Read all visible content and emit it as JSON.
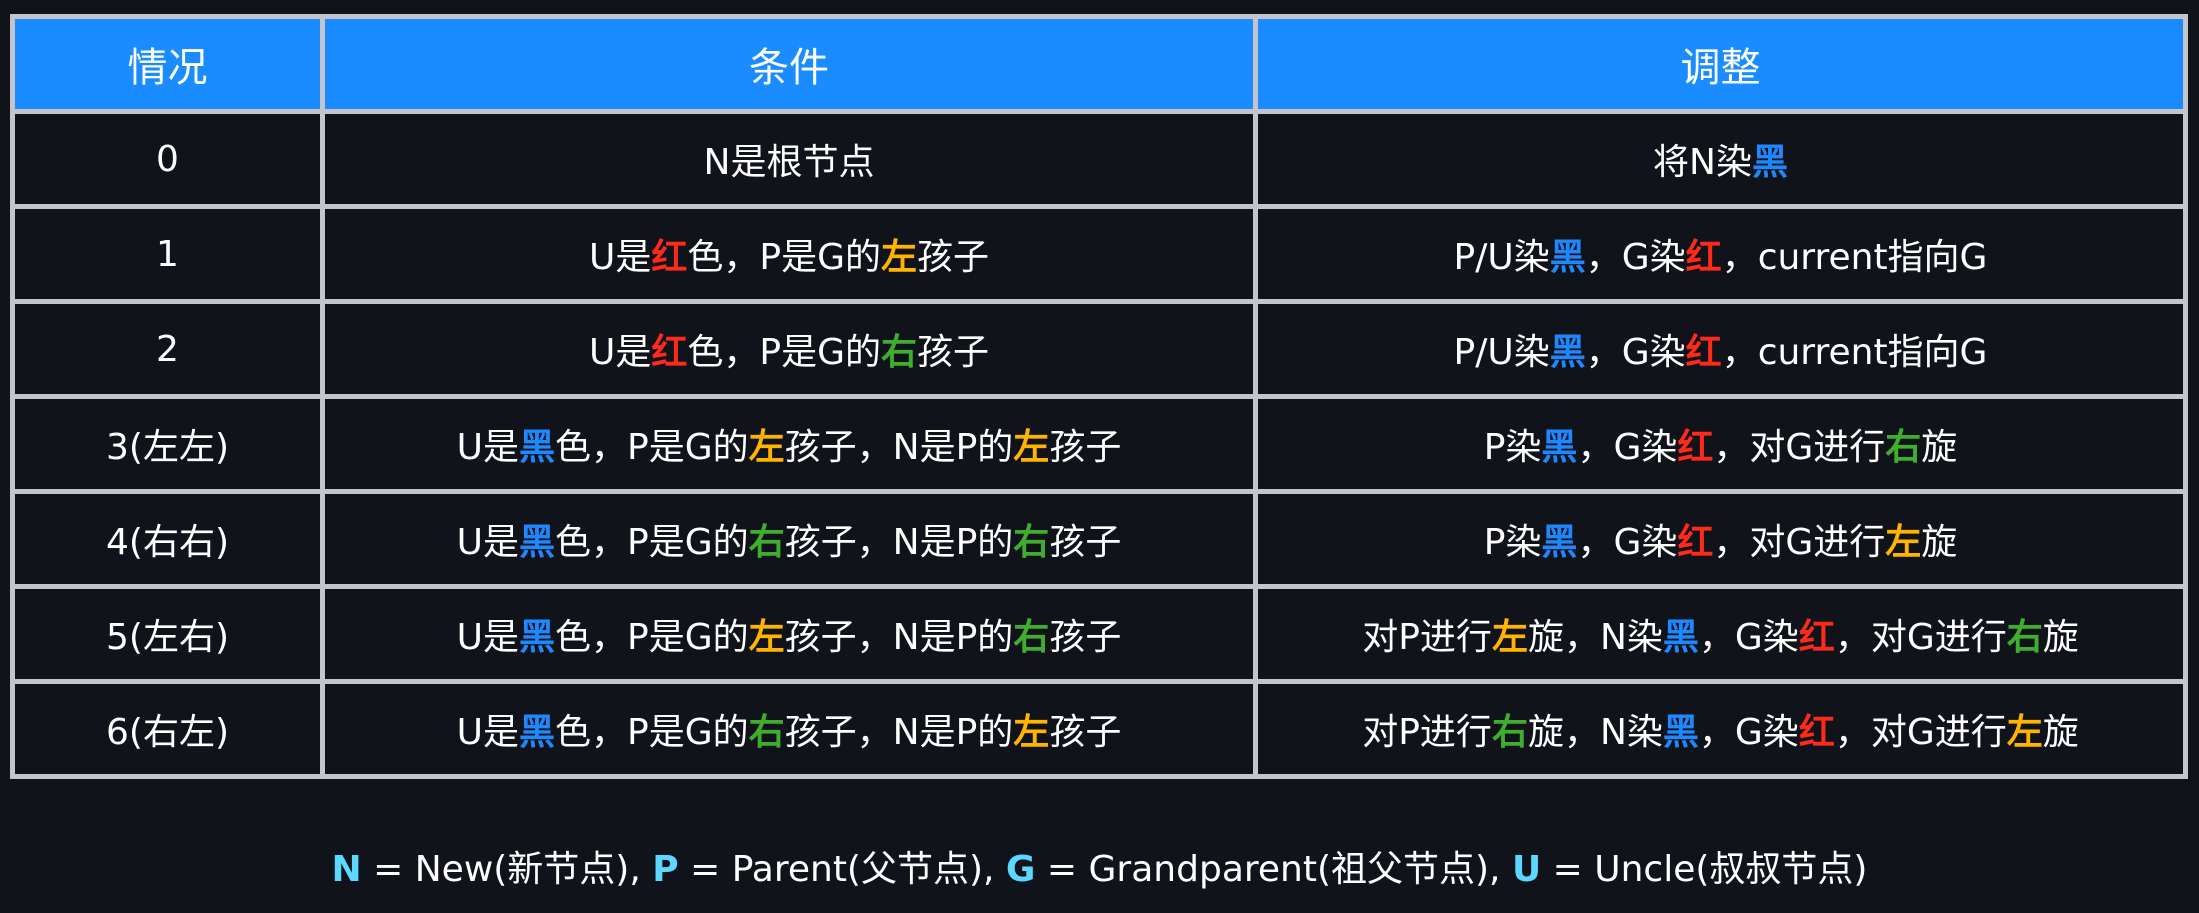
{
  "colors": {
    "header_bg": "#1a8cff",
    "red": "#ff2a1a",
    "blue": "#1e88ff",
    "orange": "#ffb400",
    "green": "#3fae2f",
    "cyan": "#5ad8ff",
    "white": "#ffffff"
  },
  "headers": [
    "情况",
    "条件",
    "调整"
  ],
  "rows": [
    {
      "case": "0",
      "cond": [
        {
          "t": "N是根节点"
        }
      ],
      "adj": [
        {
          "t": "将N染"
        },
        {
          "t": "黑",
          "c": "blue"
        }
      ]
    },
    {
      "case": "1",
      "cond": [
        {
          "t": "U是"
        },
        {
          "t": "红",
          "c": "red"
        },
        {
          "t": "色，P是G的"
        },
        {
          "t": "左",
          "c": "orange"
        },
        {
          "t": "孩子"
        }
      ],
      "adj": [
        {
          "t": "P/U染"
        },
        {
          "t": "黑",
          "c": "blue"
        },
        {
          "t": "，G染"
        },
        {
          "t": "红",
          "c": "red"
        },
        {
          "t": "，current指向G"
        }
      ]
    },
    {
      "case": "2",
      "cond": [
        {
          "t": "U是"
        },
        {
          "t": "红",
          "c": "red"
        },
        {
          "t": "色，P是G的"
        },
        {
          "t": "右",
          "c": "green"
        },
        {
          "t": "孩子"
        }
      ],
      "adj": [
        {
          "t": "P/U染"
        },
        {
          "t": "黑",
          "c": "blue"
        },
        {
          "t": "，G染"
        },
        {
          "t": "红",
          "c": "red"
        },
        {
          "t": "，current指向G"
        }
      ]
    },
    {
      "case": "3(左左)",
      "cond": [
        {
          "t": "U是"
        },
        {
          "t": "黑",
          "c": "blue"
        },
        {
          "t": "色，P是G的"
        },
        {
          "t": "左",
          "c": "orange"
        },
        {
          "t": "孩子，N是P的"
        },
        {
          "t": "左",
          "c": "orange"
        },
        {
          "t": "孩子"
        }
      ],
      "adj": [
        {
          "t": "P染"
        },
        {
          "t": "黑",
          "c": "blue"
        },
        {
          "t": "，G染"
        },
        {
          "t": "红",
          "c": "red"
        },
        {
          "t": "，对G进行"
        },
        {
          "t": "右",
          "c": "green"
        },
        {
          "t": "旋"
        }
      ]
    },
    {
      "case": "4(右右)",
      "cond": [
        {
          "t": "U是"
        },
        {
          "t": "黑",
          "c": "blue"
        },
        {
          "t": "色，P是G的"
        },
        {
          "t": "右",
          "c": "green"
        },
        {
          "t": "孩子，N是P的"
        },
        {
          "t": "右",
          "c": "green"
        },
        {
          "t": "孩子"
        }
      ],
      "adj": [
        {
          "t": "P染"
        },
        {
          "t": "黑",
          "c": "blue"
        },
        {
          "t": "，G染"
        },
        {
          "t": "红",
          "c": "red"
        },
        {
          "t": "，对G进行"
        },
        {
          "t": "左",
          "c": "orange"
        },
        {
          "t": "旋"
        }
      ]
    },
    {
      "case": "5(左右)",
      "cond": [
        {
          "t": "U是"
        },
        {
          "t": "黑",
          "c": "blue"
        },
        {
          "t": "色，P是G的"
        },
        {
          "t": "左",
          "c": "orange"
        },
        {
          "t": "孩子，N是P的"
        },
        {
          "t": "右",
          "c": "green"
        },
        {
          "t": "孩子"
        }
      ],
      "adj": [
        {
          "t": "对P进行"
        },
        {
          "t": "左",
          "c": "orange"
        },
        {
          "t": "旋，N染"
        },
        {
          "t": "黑",
          "c": "blue"
        },
        {
          "t": "，G染"
        },
        {
          "t": "红",
          "c": "red"
        },
        {
          "t": "，对G进行"
        },
        {
          "t": "右",
          "c": "green"
        },
        {
          "t": "旋"
        }
      ]
    },
    {
      "case": "6(右左)",
      "cond": [
        {
          "t": "U是"
        },
        {
          "t": "黑",
          "c": "blue"
        },
        {
          "t": "色，P是G的"
        },
        {
          "t": "右",
          "c": "green"
        },
        {
          "t": "孩子，N是P的"
        },
        {
          "t": "左",
          "c": "orange"
        },
        {
          "t": "孩子"
        }
      ],
      "adj": [
        {
          "t": "对P进行"
        },
        {
          "t": "右",
          "c": "green"
        },
        {
          "t": "旋，N染"
        },
        {
          "t": "黑",
          "c": "blue"
        },
        {
          "t": "，G染"
        },
        {
          "t": "红",
          "c": "red"
        },
        {
          "t": "，对G进行"
        },
        {
          "t": "左",
          "c": "orange"
        },
        {
          "t": "旋"
        }
      ]
    }
  ],
  "legend": [
    {
      "t": "N",
      "c": "cyan"
    },
    {
      "t": " = New(新节点), "
    },
    {
      "t": "P",
      "c": "cyan"
    },
    {
      "t": " = Parent(父节点), "
    },
    {
      "t": "G",
      "c": "cyan"
    },
    {
      "t": " = Grandparent(祖父节点), "
    },
    {
      "t": "U",
      "c": "cyan"
    },
    {
      "t": " = Uncle(叔叔节点)"
    }
  ]
}
